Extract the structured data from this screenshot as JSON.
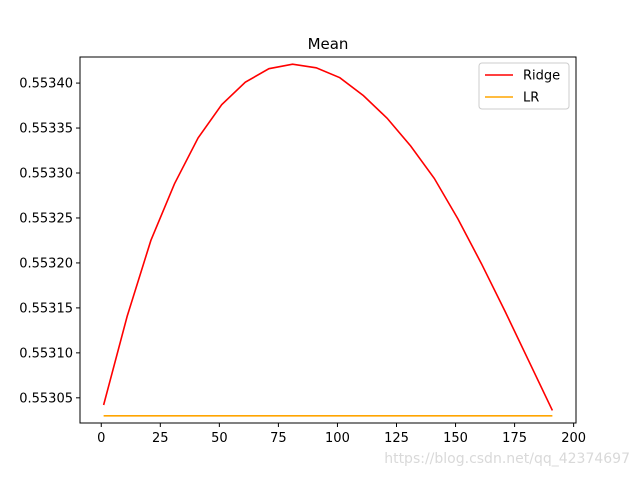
{
  "chart_data": {
    "type": "line",
    "title": "Mean",
    "xlabel": "",
    "ylabel": "",
    "xlim": [
      -9,
      201
    ],
    "ylim": [
      0.553022,
      0.553429
    ],
    "x_ticks": [
      0,
      25,
      50,
      75,
      100,
      125,
      150,
      175,
      200
    ],
    "y_ticks": [
      0.55305,
      0.5531,
      0.55315,
      0.5532,
      0.55325,
      0.5533,
      0.55335,
      0.5534
    ],
    "y_tick_labels": [
      "0.55305",
      "0.55310",
      "0.55315",
      "0.55320",
      "0.55325",
      "0.55330",
      "0.55335",
      "0.55340"
    ],
    "x_tick_labels": [
      "0",
      "25",
      "50",
      "75",
      "100",
      "125",
      "150",
      "175",
      "200"
    ],
    "legend_position": "top-right",
    "grid": false,
    "series": [
      {
        "name": "Ridge",
        "color": "#ff0000",
        "x": [
          1,
          11,
          21,
          31,
          41,
          51,
          61,
          71,
          81,
          91,
          101,
          111,
          121,
          131,
          141,
          151,
          161,
          171,
          181,
          191
        ],
        "y": [
          0.553042,
          0.553141,
          0.553225,
          0.553288,
          0.553339,
          0.553376,
          0.553401,
          0.553416,
          0.553421,
          0.553417,
          0.553406,
          0.553386,
          0.553361,
          0.55333,
          0.553294,
          0.553249,
          0.553199,
          0.553146,
          0.553091,
          0.553036
        ]
      },
      {
        "name": "LR",
        "color": "#ffa500",
        "x": [
          1,
          191
        ],
        "y": [
          0.55303,
          0.55303
        ]
      }
    ]
  },
  "watermark": "https://blog.csdn.net/qq_42374697"
}
